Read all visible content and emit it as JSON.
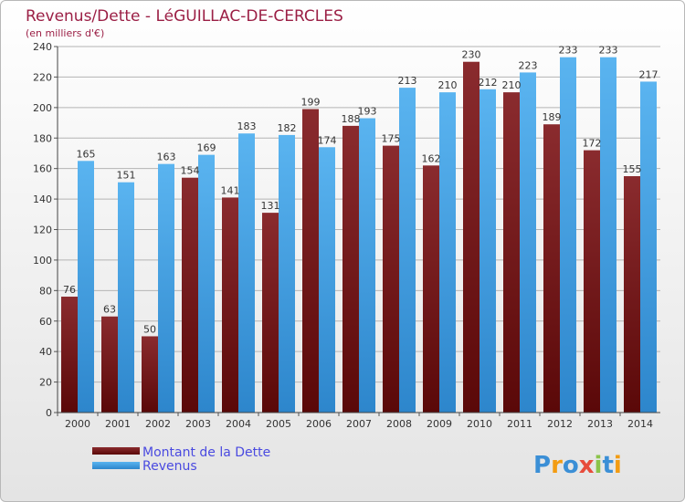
{
  "chart_data": {
    "type": "bar",
    "title": "Revenus/Dette - LéGUILLAC-DE-CERCLES",
    "subtitle": "(en milliers d'€)",
    "xlabel": "",
    "ylabel": "",
    "ylim": [
      0,
      240
    ],
    "ytick_step": 20,
    "grid": true,
    "categories": [
      "2000",
      "2001",
      "2002",
      "2003",
      "2004",
      "2005",
      "2006",
      "2007",
      "2008",
      "2009",
      "2010",
      "2011",
      "2012",
      "2013",
      "2014"
    ],
    "series": [
      {
        "name": "Montant de la Dette",
        "color": "#7a1f22",
        "values": [
          76,
          63,
          50,
          154,
          141,
          131,
          199,
          188,
          175,
          162,
          230,
          210,
          189,
          172,
          155
        ]
      },
      {
        "name": "Revenus",
        "color": "#4aa4e4",
        "values": [
          165,
          151,
          163,
          169,
          183,
          182,
          174,
          193,
          213,
          210,
          212,
          223,
          233,
          233,
          217
        ]
      }
    ],
    "legend_position": "bottom-left"
  },
  "logo": {
    "text": "Proxiti",
    "colors": [
      "#3b8fd6",
      "#f39c12",
      "#3b8fd6",
      "#e74c3c",
      "#8bc34a",
      "#3b8fd6",
      "#f39c12"
    ]
  }
}
